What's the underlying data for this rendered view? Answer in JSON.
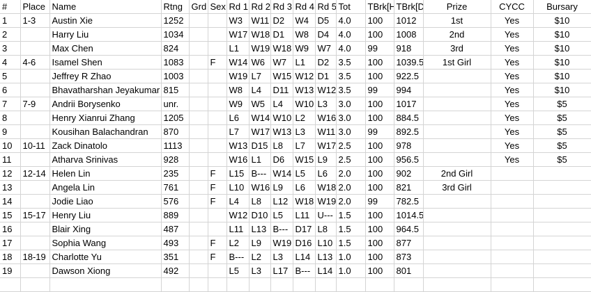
{
  "columns": [
    "#",
    "Place",
    "Name",
    "Rtng",
    "Grd",
    "Sex",
    "Rd 1",
    "Rd 2",
    "Rd 3",
    "Rd 4",
    "Rd 5",
    "Tot",
    "TBrk[H",
    "TBrk[D",
    "Prize",
    "CYCC",
    "Bursary"
  ],
  "rows": [
    [
      "1",
      "1-3",
      "Austin Xie",
      "1252",
      "",
      "",
      "W3",
      "W11",
      "D2",
      "W4",
      "D5",
      "4.0",
      "100",
      "1012",
      "1st",
      "Yes",
      "$10"
    ],
    [
      "2",
      "",
      "Harry Liu",
      "1034",
      "",
      "",
      "W17",
      "W18",
      "D1",
      "W8",
      "D4",
      "4.0",
      "100",
      "1008",
      "2nd",
      "Yes",
      "$10"
    ],
    [
      "3",
      "",
      "Max Chen",
      "824",
      "",
      "",
      "L1",
      "W19",
      "W18",
      "W9",
      "W7",
      "4.0",
      "99",
      "918",
      "3rd",
      "Yes",
      "$10"
    ],
    [
      "4",
      "4-6",
      "Isamel Shen",
      "1083",
      "",
      "F",
      "W14",
      "W6",
      "W7",
      "L1",
      "D2",
      "3.5",
      "100",
      "1039.5",
      "1st Girl",
      "Yes",
      "$10"
    ],
    [
      "5",
      "",
      "Jeffrey R Zhao",
      "1003",
      "",
      "",
      "W19",
      "L7",
      "W15",
      "W12",
      "D1",
      "3.5",
      "100",
      "922.5",
      "",
      "Yes",
      "$10"
    ],
    [
      "6",
      "",
      "Bhavatharshan Jeyakumar",
      "815",
      "",
      "",
      "W8",
      "L4",
      "D11",
      "W13",
      "W12",
      "3.5",
      "99",
      "994",
      "",
      "Yes",
      "$10"
    ],
    [
      "7",
      "7-9",
      "Andrii Borysenko",
      "unr.",
      "",
      "",
      "W9",
      "W5",
      "L4",
      "W10",
      "L3",
      "3.0",
      "100",
      "1017",
      "",
      "Yes",
      "$5"
    ],
    [
      "8",
      "",
      "Henry Xianrui Zhang",
      "1205",
      "",
      "",
      "L6",
      "W14",
      "W10",
      "L2",
      "W16",
      "3.0",
      "100",
      "884.5",
      "",
      "Yes",
      "$5"
    ],
    [
      "9",
      "",
      "Kousihan Balachandran",
      "870",
      "",
      "",
      "L7",
      "W17",
      "W13",
      "L3",
      "W11",
      "3.0",
      "99",
      "892.5",
      "",
      "Yes",
      "$5"
    ],
    [
      "10",
      "10-11",
      "Zack Dinatolo",
      "1113",
      "",
      "",
      "W13",
      "D15",
      "L8",
      "L7",
      "W17",
      "2.5",
      "100",
      "978",
      "",
      "Yes",
      "$5"
    ],
    [
      "11",
      "",
      "Atharva Srinivas",
      "928",
      "",
      "",
      "W16",
      "L1",
      "D6",
      "W15",
      "L9",
      "2.5",
      "100",
      "956.5",
      "",
      "Yes",
      "$5"
    ],
    [
      "12",
      "12-14",
      "Helen Lin",
      "235",
      "",
      "F",
      "L15",
      "B---",
      "W14",
      "L5",
      "L6",
      "2.0",
      "100",
      "902",
      "2nd Girl",
      "",
      ""
    ],
    [
      "13",
      "",
      "Angela Lin",
      "761",
      "",
      "F",
      "L10",
      "W16",
      "L9",
      "L6",
      "W18",
      "2.0",
      "100",
      "821",
      "3rd Girl",
      "",
      ""
    ],
    [
      "14",
      "",
      "Jodie Liao",
      "576",
      "",
      "F",
      "L4",
      "L8",
      "L12",
      "W18",
      "W19",
      "2.0",
      "99",
      "782.5",
      "",
      "",
      ""
    ],
    [
      "15",
      "15-17",
      "Henry Liu",
      "889",
      "",
      "",
      "W12",
      "D10",
      "L5",
      "L11",
      "U---",
      "1.5",
      "100",
      "1014.5",
      "",
      "",
      ""
    ],
    [
      "16",
      "",
      "Blair Xing",
      "487",
      "",
      "",
      "L11",
      "L13",
      "B---",
      "D17",
      "L8",
      "1.5",
      "100",
      "964.5",
      "",
      "",
      ""
    ],
    [
      "17",
      "",
      "Sophia Wang",
      "493",
      "",
      "F",
      "L2",
      "L9",
      "W19",
      "D16",
      "L10",
      "1.5",
      "100",
      "877",
      "",
      "",
      ""
    ],
    [
      "18",
      "18-19",
      "Charlotte Yu",
      "351",
      "",
      "F",
      "B---",
      "L2",
      "L3",
      "L14",
      "L13",
      "1.0",
      "100",
      "873",
      "",
      "",
      ""
    ],
    [
      "19",
      "",
      "Dawson Xiong",
      "492",
      "",
      "",
      "L5",
      "L3",
      "L17",
      "B---",
      "L14",
      "1.0",
      "100",
      "801",
      "",
      "",
      ""
    ]
  ]
}
